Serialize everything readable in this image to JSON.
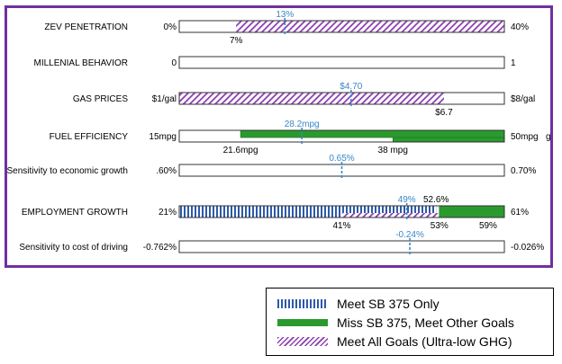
{
  "colors": {
    "frame": "#7030a0",
    "blue": "#2e5aa8",
    "green": "#2a9a2e",
    "purple": "#8b3fb0",
    "marker": "#3a86c8"
  },
  "chart_data": {
    "type": "bar",
    "title": "",
    "rows": [
      {
        "name": "ZEV PENETRATION",
        "min_label": "0%",
        "max_label": "40%",
        "range": [
          0,
          40
        ],
        "segments": [
          {
            "type": "purple",
            "from": 7,
            "to": 40
          }
        ],
        "marker": {
          "value": 13,
          "label": "13%"
        },
        "below": [
          {
            "value": 7,
            "label": "7%"
          }
        ],
        "above": []
      },
      {
        "name": "MILLENIAL BEHAVIOR",
        "min_label": "0",
        "max_label": "1",
        "range": [
          0,
          1
        ],
        "segments": [],
        "marker": null,
        "below": [],
        "above": []
      },
      {
        "name": "GAS PRICES",
        "min_label": "$1/gal",
        "max_label": "$8/gal",
        "range": [
          1,
          8
        ],
        "segments": [
          {
            "type": "purple",
            "from": 1,
            "to": 6.7
          }
        ],
        "marker": {
          "value": 4.7,
          "label": "$4.70"
        },
        "below": [
          {
            "value": 6.7,
            "label": "$6.7"
          }
        ],
        "above": []
      },
      {
        "name": "FUEL EFFICIENCY",
        "min_label": "15mpg",
        "max_label": "50mpg",
        "max_extra": "g",
        "range": [
          15,
          50
        ],
        "segments": [
          {
            "type": "green",
            "from": 21.6,
            "to": 50,
            "band": "top"
          },
          {
            "type": "green",
            "from": 38,
            "to": 50,
            "band": "bottom"
          }
        ],
        "marker": {
          "value": 28.2,
          "label": "28.2mpg"
        },
        "below": [
          {
            "value": 21.6,
            "label": "21.6mpg"
          },
          {
            "value": 38,
            "label": "38 mpg"
          }
        ],
        "above": []
      },
      {
        "name": "Sensitivity to economic growth",
        "min_label": ".60%",
        "max_label": "0.70%",
        "range": [
          0.6,
          0.7
        ],
        "segments": [],
        "marker": {
          "value": 0.65,
          "label": "0.65%"
        },
        "below": [],
        "above": []
      },
      {
        "name": "EMPLOYMENT GROWTH",
        "min_label": "21%",
        "max_label": "61%",
        "range": [
          21,
          61
        ],
        "segments": [
          {
            "type": "blue",
            "from": 21,
            "to": 52.6
          },
          {
            "type": "purple",
            "from": 41,
            "to": 59,
            "band": "bottom"
          },
          {
            "type": "green",
            "from": 53,
            "to": 61
          }
        ],
        "marker": {
          "value": 49,
          "label": "49%"
        },
        "below": [
          {
            "value": 41,
            "label": "41%"
          },
          {
            "value": 53,
            "label": "53%"
          },
          {
            "value": 59,
            "label": "59%"
          }
        ],
        "above": [
          {
            "value": 52.6,
            "label": "52.6%"
          }
        ]
      },
      {
        "name": "Sensitivity to cost of driving",
        "min_label": "-0.762%",
        "max_label": "-0.026%",
        "range": [
          -0.762,
          -0.026
        ],
        "segments": [],
        "marker": {
          "value": -0.24,
          "label": "-0.24%"
        },
        "below": [],
        "above": []
      }
    ],
    "legend": [
      {
        "type": "blue",
        "label": "Meet SB 375 Only"
      },
      {
        "type": "green",
        "label": "Miss SB 375, Meet Other Goals"
      },
      {
        "type": "purple",
        "label": "Meet All Goals (Ultra-low GHG)"
      }
    ]
  }
}
